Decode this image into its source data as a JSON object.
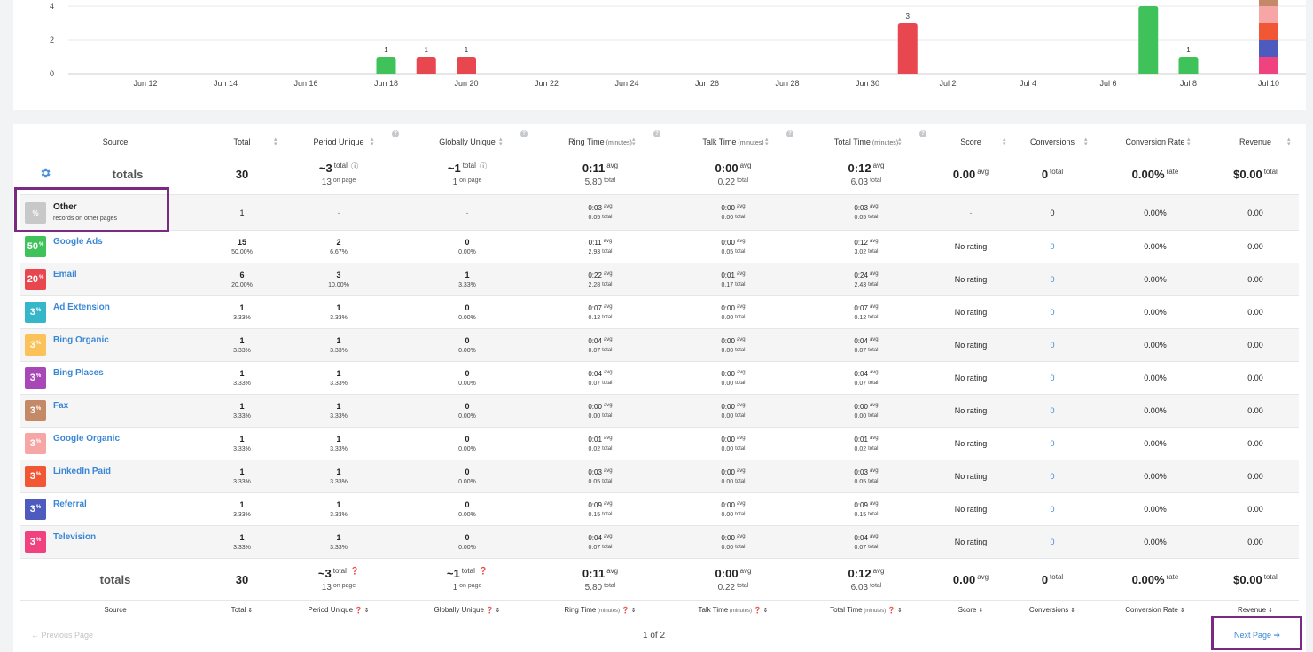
{
  "chart_data": {
    "type": "bar",
    "ylim": [
      0,
      4
    ],
    "y_ticks": [
      "0",
      "2",
      "4"
    ],
    "x_ticks": [
      "Jun 12",
      "Jun 14",
      "Jun 16",
      "Jun 18",
      "Jun 20",
      "Jun 22",
      "Jun 24",
      "Jun 26",
      "Jun 28",
      "Jun 30",
      "Jul 2",
      "Jul 4",
      "Jul 6",
      "Jul 8",
      "Jul 10"
    ],
    "bars": [
      {
        "date": "Jun 18",
        "value": 1,
        "label": "1",
        "color": "#3fc25a"
      },
      {
        "date": "Jun 19",
        "value": 1,
        "label": "1",
        "color": "#e8474f"
      },
      {
        "date": "Jun 20",
        "value": 1,
        "label": "1",
        "color": "#e8474f"
      },
      {
        "date": "Jul 1",
        "value": 3,
        "label": "3",
        "color": "#e8474f"
      },
      {
        "date": "Jul 7",
        "value": 4,
        "label": "",
        "color": "#3fc25a"
      },
      {
        "date": "Jul 8",
        "value": 1,
        "label": "1",
        "color": "#3fc25a"
      }
    ],
    "stacked_bar": {
      "date": "Jul 10",
      "segments": [
        {
          "value": 1,
          "color": "#f0427f"
        },
        {
          "value": 1,
          "color": "#4d5bbf"
        },
        {
          "value": 1,
          "color": "#f25735"
        },
        {
          "value": 1,
          "color": "#f7a6a6"
        },
        {
          "value": 1,
          "color": "#c48a68"
        }
      ]
    }
  },
  "headers": {
    "source": "Source",
    "total": "Total",
    "period_unique": "Period Unique",
    "globally_unique": "Globally Unique",
    "ring_time": "Ring Time",
    "talk_time": "Talk Time",
    "total_time": "Total Time",
    "minutes": "(minutes)",
    "score": "Score",
    "conversions": "Conversions",
    "conversion_rate": "Conversion Rate",
    "revenue": "Revenue"
  },
  "totals": {
    "label": "totals",
    "total": "30",
    "period_unique": "~3",
    "period_unique_sup": "total",
    "period_unique_page": "13",
    "globally_unique": "~1",
    "globally_unique_sup": "total",
    "globally_unique_page": "1",
    "on_page": "on page",
    "ring_avg": "0:11",
    "ring_total": "5.80",
    "talk_avg": "0:00",
    "talk_total": "0.22",
    "time_avg": "0:12",
    "time_total": "6.03",
    "avg": "avg",
    "total_word": "total",
    "score": "0.00",
    "conversions": "0",
    "conversion_rate": "0.00%",
    "rate": "rate",
    "revenue": "$0.00"
  },
  "other_row": {
    "badge": "%",
    "name": "Other",
    "sub": "records on other pages",
    "total": "1",
    "period_unique": "-",
    "globally_unique": "-",
    "ring_avg": "0:03",
    "ring_total": "0.05",
    "talk_avg": "0:00",
    "talk_total": "0.00",
    "time_avg": "0:03",
    "time_total": "0.05",
    "score": "-",
    "conversions": "0",
    "conversion_rate": "0.00%",
    "revenue": "0.00"
  },
  "rows": [
    {
      "pct": "50",
      "color": "#3fc25a",
      "name": "Google Ads",
      "total": "15",
      "total_pct": "50.00%",
      "pu": "2",
      "pu_pct": "6.67%",
      "gu": "0",
      "gu_pct": "0.00%",
      "ring_avg": "0:11",
      "ring_total": "2.93",
      "talk_avg": "0:00",
      "talk_total": "0.05",
      "time_avg": "0:12",
      "time_total": "3.02",
      "score": "No rating",
      "conversions": "0",
      "conversion_rate": "0.00%",
      "revenue": "0.00"
    },
    {
      "pct": "20",
      "color": "#e8474f",
      "name": "Email",
      "total": "6",
      "total_pct": "20.00%",
      "pu": "3",
      "pu_pct": "10.00%",
      "gu": "1",
      "gu_pct": "3.33%",
      "ring_avg": "0:22",
      "ring_total": "2.28",
      "talk_avg": "0:01",
      "talk_total": "0.17",
      "time_avg": "0:24",
      "time_total": "2.43",
      "score": "No rating",
      "conversions": "0",
      "conversion_rate": "0.00%",
      "revenue": "0.00"
    },
    {
      "pct": "3",
      "color": "#35b6c9",
      "name": "Ad Extension",
      "total": "1",
      "total_pct": "3.33%",
      "pu": "1",
      "pu_pct": "3.33%",
      "gu": "0",
      "gu_pct": "0.00%",
      "ring_avg": "0:07",
      "ring_total": "0.12",
      "talk_avg": "0:00",
      "talk_total": "0.00",
      "time_avg": "0:07",
      "time_total": "0.12",
      "score": "No rating",
      "conversions": "0",
      "conversion_rate": "0.00%",
      "revenue": "0.00"
    },
    {
      "pct": "3",
      "color": "#fcc25a",
      "name": "Bing Organic",
      "total": "1",
      "total_pct": "3.33%",
      "pu": "1",
      "pu_pct": "3.33%",
      "gu": "0",
      "gu_pct": "0.00%",
      "ring_avg": "0:04",
      "ring_total": "0.07",
      "talk_avg": "0:00",
      "talk_total": "0.00",
      "time_avg": "0:04",
      "time_total": "0.07",
      "score": "No rating",
      "conversions": "0",
      "conversion_rate": "0.00%",
      "revenue": "0.00"
    },
    {
      "pct": "3",
      "color": "#a847b6",
      "name": "Bing Places",
      "total": "1",
      "total_pct": "3.33%",
      "pu": "1",
      "pu_pct": "3.33%",
      "gu": "0",
      "gu_pct": "0.00%",
      "ring_avg": "0:04",
      "ring_total": "0.07",
      "talk_avg": "0:00",
      "talk_total": "0.00",
      "time_avg": "0:04",
      "time_total": "0.07",
      "score": "No rating",
      "conversions": "0",
      "conversion_rate": "0.00%",
      "revenue": "0.00"
    },
    {
      "pct": "3",
      "color": "#c48a68",
      "name": "Fax",
      "total": "1",
      "total_pct": "3.33%",
      "pu": "1",
      "pu_pct": "3.33%",
      "gu": "0",
      "gu_pct": "0.00%",
      "ring_avg": "0:00",
      "ring_total": "0.00",
      "talk_avg": "0:00",
      "talk_total": "0.00",
      "time_avg": "0:00",
      "time_total": "0.00",
      "score": "No rating",
      "conversions": "0",
      "conversion_rate": "0.00%",
      "revenue": "0.00"
    },
    {
      "pct": "3",
      "color": "#f7a6a6",
      "name": "Google Organic",
      "total": "1",
      "total_pct": "3.33%",
      "pu": "1",
      "pu_pct": "3.33%",
      "gu": "0",
      "gu_pct": "0.00%",
      "ring_avg": "0:01",
      "ring_total": "0.02",
      "talk_avg": "0:00",
      "talk_total": "0.00",
      "time_avg": "0:01",
      "time_total": "0.02",
      "score": "No rating",
      "conversions": "0",
      "conversion_rate": "0.00%",
      "revenue": "0.00"
    },
    {
      "pct": "3",
      "color": "#f25735",
      "name": "LinkedIn Paid",
      "total": "1",
      "total_pct": "3.33%",
      "pu": "1",
      "pu_pct": "3.33%",
      "gu": "0",
      "gu_pct": "0.00%",
      "ring_avg": "0:03",
      "ring_total": "0.05",
      "talk_avg": "0:00",
      "talk_total": "0.00",
      "time_avg": "0:03",
      "time_total": "0.05",
      "score": "No rating",
      "conversions": "0",
      "conversion_rate": "0.00%",
      "revenue": "0.00"
    },
    {
      "pct": "3",
      "color": "#4d5bbf",
      "name": "Referral",
      "total": "1",
      "total_pct": "3.33%",
      "pu": "1",
      "pu_pct": "3.33%",
      "gu": "0",
      "gu_pct": "0.00%",
      "ring_avg": "0:09",
      "ring_total": "0.15",
      "talk_avg": "0:00",
      "talk_total": "0.00",
      "time_avg": "0:09",
      "time_total": "0.15",
      "score": "No rating",
      "conversions": "0",
      "conversion_rate": "0.00%",
      "revenue": "0.00"
    },
    {
      "pct": "3",
      "color": "#f0427f",
      "name": "Television",
      "total": "1",
      "total_pct": "3.33%",
      "pu": "1",
      "pu_pct": "3.33%",
      "gu": "0",
      "gu_pct": "0.00%",
      "ring_avg": "0:04",
      "ring_total": "0.07",
      "talk_avg": "0:00",
      "talk_total": "0.00",
      "time_avg": "0:04",
      "time_total": "0.07",
      "score": "No rating",
      "conversions": "0",
      "conversion_rate": "0.00%",
      "revenue": "0.00"
    }
  ],
  "pagination": {
    "previous": "Previous Page",
    "page_info": "1 of 2",
    "next": "Next Page"
  }
}
